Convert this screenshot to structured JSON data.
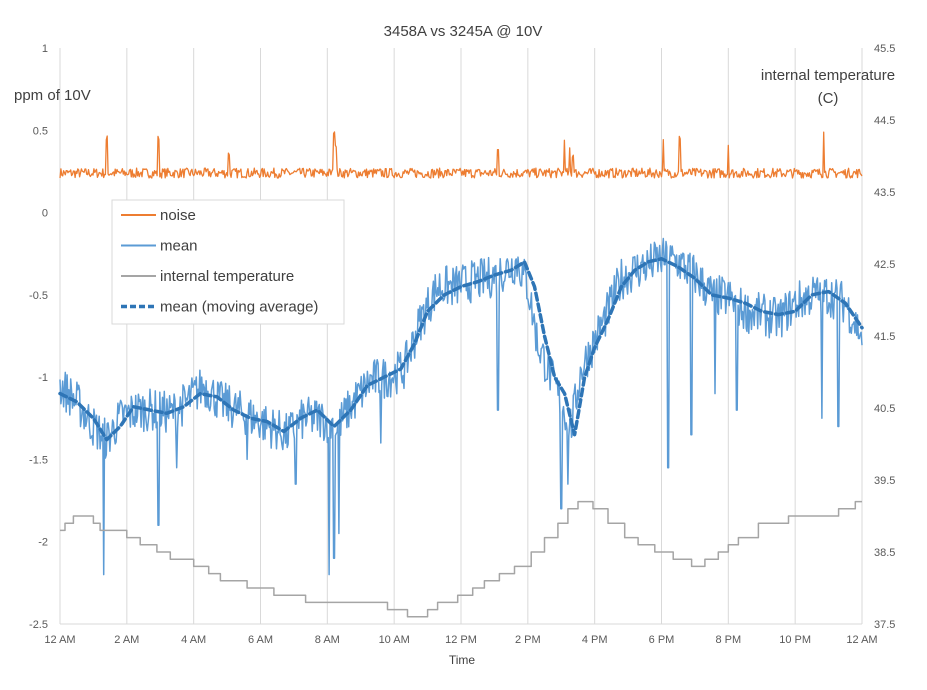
{
  "chart_data": {
    "type": "line",
    "title": "3458A vs 3245A @ 10V",
    "xlabel": "Time",
    "ylabel": "ppm of 10V",
    "y2label": "internal temperature\n(C)",
    "grid": "vertical",
    "legend_position": "upper-left-inside",
    "ylim": [
      -2.5,
      1
    ],
    "y2lim": [
      37.5,
      45.5
    ],
    "xlim_hours": [
      0,
      24
    ],
    "x_ticks": [
      "12 AM",
      "2 AM",
      "4 AM",
      "6 AM",
      "8 AM",
      "10 AM",
      "12 PM",
      "2 PM",
      "4 PM",
      "6 PM",
      "8 PM",
      "10 PM",
      "12 AM"
    ],
    "y_ticks": [
      "1",
      "0.5",
      "0",
      "-0.5",
      "-1",
      "-1.5",
      "-2",
      "-2.5"
    ],
    "y2_ticks": [
      "45.5",
      "44.5",
      "43.5",
      "42.5",
      "41.5",
      "40.5",
      "39.5",
      "38.5",
      "37.5"
    ],
    "series": [
      {
        "name": "noise",
        "axis": "left",
        "color": "#ED7D31",
        "style": "solid",
        "base": 0.24,
        "jitter": 0.03,
        "spikes": [
          [
            1.4,
            0.47
          ],
          [
            2.95,
            0.47
          ],
          [
            5.05,
            0.37
          ],
          [
            8.2,
            0.49
          ],
          [
            8.25,
            0.42
          ],
          [
            13.1,
            0.4
          ],
          [
            15.1,
            0.44
          ],
          [
            15.25,
            0.41
          ],
          [
            15.35,
            0.35
          ],
          [
            18.05,
            0.47
          ],
          [
            18.55,
            0.47
          ],
          [
            20.0,
            0.42
          ],
          [
            22.85,
            0.49
          ]
        ]
      },
      {
        "name": "mean",
        "axis": "left",
        "color": "#5B9BD5",
        "style": "solid",
        "x": [
          0,
          0.5,
          1,
          1.4,
          1.8,
          2.3,
          2.8,
          3.3,
          3.8,
          4.3,
          4.8,
          5.3,
          5.8,
          6.3,
          6.8,
          7.3,
          7.8,
          8.3,
          8.8,
          9.3,
          9.8,
          10.3,
          10.8,
          11.3,
          11.8,
          12.3,
          12.8,
          13.3,
          13.7,
          14.0,
          14.3,
          14.6,
          15.0,
          15.3,
          15.6,
          16.0,
          16.4,
          16.8,
          17.2,
          17.6,
          18.0,
          18.5,
          19.0,
          19.5,
          20.0,
          20.5,
          21.0,
          21.5,
          22.0,
          22.5,
          23.0,
          23.5,
          24
        ],
        "values": [
          -1.05,
          -1.15,
          -1.3,
          -1.38,
          -1.25,
          -1.2,
          -1.2,
          -1.22,
          -1.15,
          -1.05,
          -1.15,
          -1.2,
          -1.25,
          -1.3,
          -1.35,
          -1.25,
          -1.25,
          -1.3,
          -1.15,
          -1.02,
          -1.0,
          -0.95,
          -0.65,
          -0.45,
          -0.45,
          -0.42,
          -0.4,
          -0.35,
          -0.3,
          -0.45,
          -0.8,
          -0.95,
          -1.15,
          -1.3,
          -0.95,
          -0.78,
          -0.6,
          -0.4,
          -0.35,
          -0.32,
          -0.28,
          -0.3,
          -0.38,
          -0.5,
          -0.52,
          -0.6,
          -0.62,
          -0.65,
          -0.55,
          -0.5,
          -0.5,
          -0.55,
          -0.75
        ],
        "jitter": 0.13,
        "spikes": [
          [
            1.3,
            -2.2
          ],
          [
            2.95,
            -1.9
          ],
          [
            3.5,
            -1.55
          ],
          [
            5.6,
            -1.5
          ],
          [
            7.05,
            -1.65
          ],
          [
            8.05,
            -2.2
          ],
          [
            8.2,
            -2.1
          ],
          [
            8.35,
            -1.95
          ],
          [
            9.6,
            -1.4
          ],
          [
            13.1,
            -1.2
          ],
          [
            15.0,
            -1.8
          ],
          [
            15.2,
            -1.65
          ],
          [
            18.2,
            -1.55
          ],
          [
            18.9,
            -1.35
          ],
          [
            19.6,
            -1.1
          ],
          [
            20.25,
            -1.2
          ],
          [
            22.8,
            -1.25
          ],
          [
            23.3,
            -1.3
          ]
        ]
      },
      {
        "name": "internal temperature",
        "axis": "right",
        "color": "#A5A5A5",
        "style": "solid",
        "x": [
          0,
          0.15,
          0.4,
          1.0,
          1.2,
          2.0,
          2.4,
          2.9,
          3.3,
          4.0,
          4.4,
          4.8,
          5.6,
          6.4,
          7.3,
          7.9,
          8.6,
          9.0,
          9.8,
          10.4,
          11.0,
          11.3,
          11.9,
          12.3,
          12.7,
          13.1,
          13.6,
          14.1,
          14.5,
          14.9,
          15.2,
          15.5,
          15.9,
          16.4,
          16.9,
          17.3,
          17.8,
          18.3,
          18.9,
          19.3,
          19.7,
          20.0,
          20.3,
          20.9,
          21.3,
          21.8,
          22.3,
          22.7,
          23.3,
          23.8,
          24
        ],
        "values": [
          38.8,
          38.9,
          39.0,
          38.9,
          38.8,
          38.7,
          38.6,
          38.5,
          38.4,
          38.3,
          38.2,
          38.1,
          38.0,
          37.9,
          37.8,
          37.8,
          37.8,
          37.8,
          37.7,
          37.6,
          37.7,
          37.8,
          37.9,
          38.0,
          38.1,
          38.2,
          38.3,
          38.5,
          38.7,
          38.9,
          39.1,
          39.2,
          39.1,
          38.9,
          38.7,
          38.6,
          38.5,
          38.4,
          38.3,
          38.4,
          38.5,
          38.6,
          38.7,
          38.9,
          38.9,
          39.0,
          39.0,
          39.0,
          39.1,
          39.2,
          39.2
        ]
      },
      {
        "name": "mean (moving average)",
        "axis": "left",
        "color": "#2E75B6",
        "style": "dashed",
        "x": [
          0,
          0.5,
          1.0,
          1.4,
          1.8,
          2.2,
          2.7,
          3.2,
          3.7,
          4.2,
          4.7,
          5.2,
          5.7,
          6.2,
          6.7,
          7.2,
          7.7,
          8.2,
          8.7,
          9.2,
          9.7,
          10.2,
          10.6,
          11.0,
          11.5,
          12.0,
          12.5,
          13.0,
          13.5,
          13.9,
          14.2,
          14.5,
          14.8,
          15.1,
          15.4,
          15.7,
          16.0,
          16.4,
          16.8,
          17.2,
          17.6,
          18.0,
          18.5,
          19.0,
          19.5,
          20.0,
          20.5,
          21.0,
          21.5,
          22.0,
          22.5,
          23.0,
          23.5,
          24
        ],
        "values": [
          -1.1,
          -1.15,
          -1.25,
          -1.38,
          -1.3,
          -1.18,
          -1.2,
          -1.22,
          -1.18,
          -1.1,
          -1.12,
          -1.2,
          -1.25,
          -1.27,
          -1.33,
          -1.25,
          -1.2,
          -1.3,
          -1.2,
          -1.05,
          -1.0,
          -0.95,
          -0.8,
          -0.6,
          -0.5,
          -0.45,
          -0.42,
          -0.38,
          -0.35,
          -0.3,
          -0.45,
          -0.75,
          -1.0,
          -1.1,
          -1.35,
          -1.0,
          -0.82,
          -0.65,
          -0.45,
          -0.35,
          -0.3,
          -0.28,
          -0.33,
          -0.4,
          -0.5,
          -0.52,
          -0.55,
          -0.6,
          -0.62,
          -0.6,
          -0.5,
          -0.48,
          -0.55,
          -0.7
        ]
      }
    ]
  }
}
